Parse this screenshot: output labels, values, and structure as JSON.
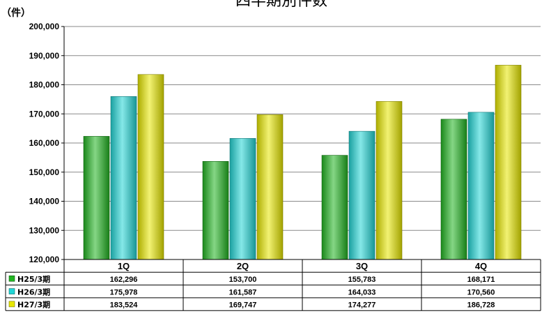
{
  "chart_data": {
    "type": "bar",
    "title": "四半期別件数",
    "unit_label": "（件）",
    "categories": [
      "1Q",
      "2Q",
      "3Q",
      "4Q"
    ],
    "series": [
      {
        "name": "H25/3期",
        "color": "#22b522",
        "values": [
          162296,
          153700,
          155783,
          168171
        ]
      },
      {
        "name": "H26/3期",
        "color": "#22d6d6",
        "values": [
          175978,
          161587,
          164033,
          170560
        ]
      },
      {
        "name": "H27/3期",
        "color": "#e8e800",
        "values": [
          183524,
          169747,
          174277,
          186728
        ]
      }
    ],
    "table_values": [
      [
        "162,296",
        "153,700",
        "155,783",
        "168,171"
      ],
      [
        "175,978",
        "161,587",
        "164,033",
        "170,560"
      ],
      [
        "183,524",
        "169,747",
        "174,277",
        "186,728"
      ]
    ],
    "y_ticks": [
      "120,000",
      "130,000",
      "140,000",
      "150,000",
      "160,000",
      "170,000",
      "180,000",
      "190,000",
      "200,000"
    ],
    "ylim": [
      120000,
      200000
    ],
    "grid": true,
    "legend": "data table, left"
  }
}
